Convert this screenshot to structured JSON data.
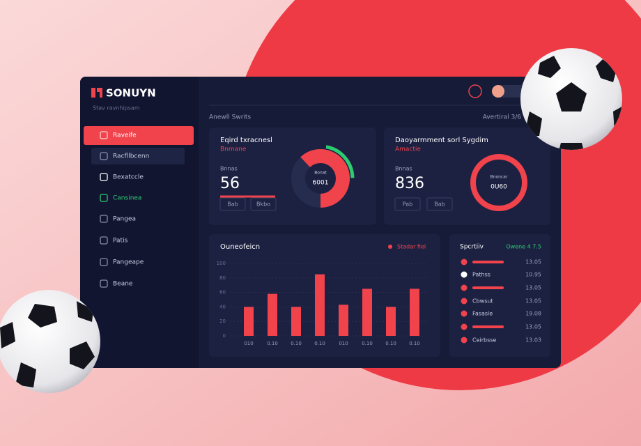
{
  "brand": {
    "name": "SONUYN",
    "tagline": "Stav ravnhipsam"
  },
  "nav": [
    "Raveife",
    "Racfllbcenn",
    "Bexatccle",
    "Cansinea",
    "Pangea",
    "Patis",
    "Pangeape",
    "Beane"
  ],
  "header": {
    "title": "Anewll Swrits",
    "right": "Avertiral 3/6"
  },
  "cards": [
    {
      "title": "Eqird txracnesl",
      "subtitle": "Bnmane",
      "label": "Bnnas",
      "value": "56",
      "buttons": [
        "Bab",
        "Bkbo"
      ],
      "center": [
        "Bonat",
        "6001"
      ],
      "ring": {
        "primary": 62,
        "secondary": 22
      }
    },
    {
      "title": "Daoyarmment sorl Sygdim",
      "subtitle": "Amactie",
      "label": "Bnnas",
      "value": "836",
      "buttons": [
        "Pab",
        "Bab"
      ],
      "center": [
        "Bnoncar",
        "0U60"
      ]
    }
  ],
  "chart_data": {
    "type": "bar",
    "title": "Ouneofeicn",
    "legend": "Stadar fiel",
    "color": "#f0434c",
    "categories": [
      "010",
      "0.10",
      "0.10",
      "0.10",
      "010",
      "0.10",
      "0.10",
      "0.10"
    ],
    "values": [
      40,
      58,
      40,
      85,
      43,
      65,
      40,
      65
    ],
    "ylim": [
      0,
      100
    ],
    "yticks": [
      0,
      20,
      40,
      60,
      80,
      100
    ],
    "grid": true
  },
  "list": {
    "title": "Spcrtiiv",
    "badge": "Owene 4 7.5",
    "rows": [
      {
        "bar": 100,
        "value": "13.05"
      },
      {
        "label": "Pathss",
        "value": "10.95"
      },
      {
        "bar": 100,
        "value": "13.05"
      },
      {
        "label": "Cbwsut",
        "value": "13.05"
      },
      {
        "label": "Fasasle",
        "value": "19.08"
      },
      {
        "bar": 100,
        "value": "13.05"
      },
      {
        "label": "Ceirbsse",
        "value": "13.03"
      }
    ]
  }
}
